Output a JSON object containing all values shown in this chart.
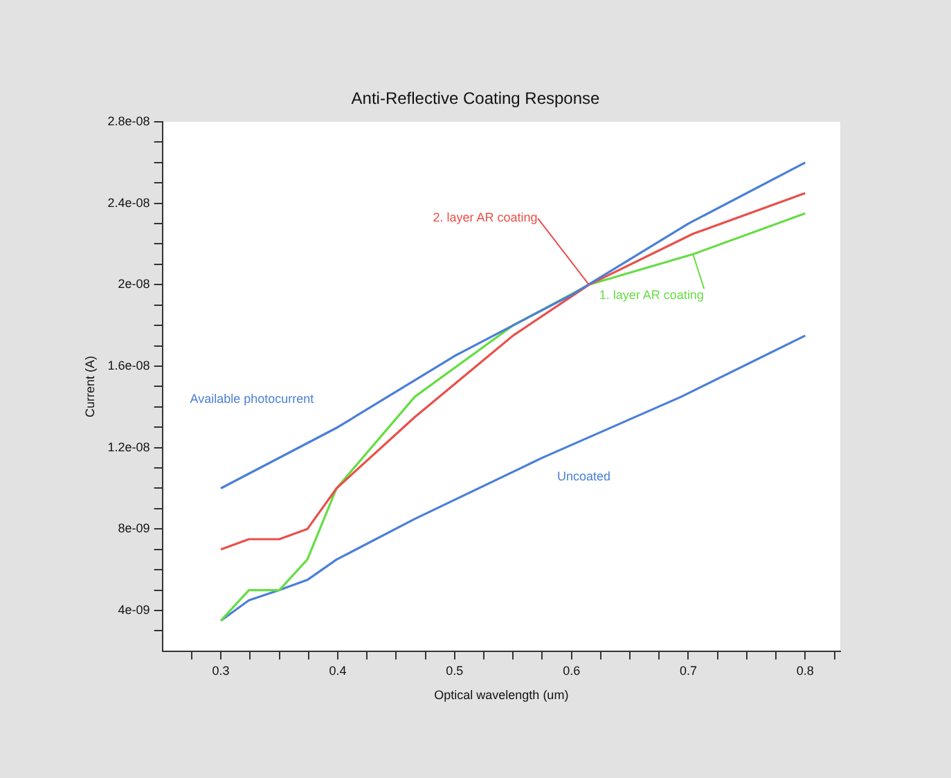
{
  "chart_data": {
    "type": "line",
    "title": "Anti-Reflective Coating Response",
    "xlabel": "Optical wavelength (um)",
    "ylabel": "Current (A)",
    "xlim": [
      0.25,
      0.83
    ],
    "ylim": [
      2e-09,
      2.8e-08
    ],
    "xticks": [
      {
        "value": 0.275,
        "label": null
      },
      {
        "value": 0.3,
        "label": "0.3"
      },
      {
        "value": 0.325,
        "label": null
      },
      {
        "value": 0.35,
        "label": null
      },
      {
        "value": 0.375,
        "label": null
      },
      {
        "value": 0.4,
        "label": "0.4"
      },
      {
        "value": 0.425,
        "label": null
      },
      {
        "value": 0.45,
        "label": null
      },
      {
        "value": 0.475,
        "label": null
      },
      {
        "value": 0.5,
        "label": "0.5"
      },
      {
        "value": 0.525,
        "label": null
      },
      {
        "value": 0.55,
        "label": null
      },
      {
        "value": 0.575,
        "label": null
      },
      {
        "value": 0.6,
        "label": "0.6"
      },
      {
        "value": 0.625,
        "label": null
      },
      {
        "value": 0.65,
        "label": null
      },
      {
        "value": 0.675,
        "label": null
      },
      {
        "value": 0.7,
        "label": "0.7"
      },
      {
        "value": 0.725,
        "label": null
      },
      {
        "value": 0.75,
        "label": null
      },
      {
        "value": 0.775,
        "label": null
      },
      {
        "value": 0.8,
        "label": "0.8"
      },
      {
        "value": 0.825,
        "label": null
      }
    ],
    "yticks": [
      {
        "value": 3e-09,
        "label": null
      },
      {
        "value": 4e-09,
        "label": "4e-09"
      },
      {
        "value": 5e-09,
        "label": null
      },
      {
        "value": 6e-09,
        "label": null
      },
      {
        "value": 7e-09,
        "label": null
      },
      {
        "value": 8e-09,
        "label": "8e-09"
      },
      {
        "value": 9e-09,
        "label": null
      },
      {
        "value": 1e-08,
        "label": null
      },
      {
        "value": 1.1e-08,
        "label": null
      },
      {
        "value": 1.2e-08,
        "label": "1.2e-08"
      },
      {
        "value": 1.3e-08,
        "label": null
      },
      {
        "value": 1.4e-08,
        "label": null
      },
      {
        "value": 1.5e-08,
        "label": null
      },
      {
        "value": 1.6e-08,
        "label": "1.6e-08"
      },
      {
        "value": 1.7e-08,
        "label": null
      },
      {
        "value": 1.8e-08,
        "label": null
      },
      {
        "value": 1.9e-08,
        "label": null
      },
      {
        "value": 2e-08,
        "label": "2e-08"
      },
      {
        "value": 2.1e-08,
        "label": null
      },
      {
        "value": 2.2e-08,
        "label": null
      },
      {
        "value": 2.3e-08,
        "label": null
      },
      {
        "value": 2.4e-08,
        "label": "2.4e-08"
      },
      {
        "value": 2.5e-08,
        "label": null
      },
      {
        "value": 2.6e-08,
        "label": null
      },
      {
        "value": 2.7e-08,
        "label": null
      },
      {
        "value": 2.8e-08,
        "label": "2.8e-08"
      }
    ],
    "grid": false,
    "legend": false,
    "marker": "none",
    "line_style": "solid",
    "series": [
      {
        "name": "Available photocurrent",
        "color": "#4a7fd8",
        "x": [
          0.3,
          0.4,
          0.5,
          0.6,
          0.7,
          0.8
        ],
        "values": [
          1e-08,
          1.3e-08,
          1.65e-08,
          1.95e-08,
          2.3e-08,
          2.6e-08
        ]
      },
      {
        "name": "2. layer AR coating",
        "color": "#e8504a",
        "x": [
          0.3,
          0.324,
          0.35,
          0.374,
          0.399,
          0.466,
          0.55,
          0.615,
          0.704,
          0.8
        ],
        "values": [
          7e-09,
          7.5e-09,
          7.5e-09,
          8e-09,
          1e-08,
          1.35e-08,
          1.75e-08,
          2e-08,
          2.25e-08,
          2.45e-08
        ]
      },
      {
        "name": "1. layer AR coating",
        "color": "#66dd44",
        "x": [
          0.3,
          0.324,
          0.35,
          0.374,
          0.399,
          0.466,
          0.55,
          0.615,
          0.704,
          0.8
        ],
        "values": [
          3.5e-09,
          5e-09,
          5e-09,
          6.5e-09,
          1e-08,
          1.45e-08,
          1.8e-08,
          2e-08,
          2.15e-08,
          2.35e-08
        ]
      },
      {
        "name": "Uncoated",
        "color": "#4a7fd8",
        "x": [
          0.3,
          0.324,
          0.35,
          0.374,
          0.399,
          0.466,
          0.575,
          0.694,
          0.8
        ],
        "values": [
          3.5e-09,
          4.5e-09,
          5e-09,
          5.5e-09,
          6.5e-09,
          8.5e-09,
          1.15e-08,
          1.45e-08,
          1.75e-08
        ]
      }
    ]
  }
}
